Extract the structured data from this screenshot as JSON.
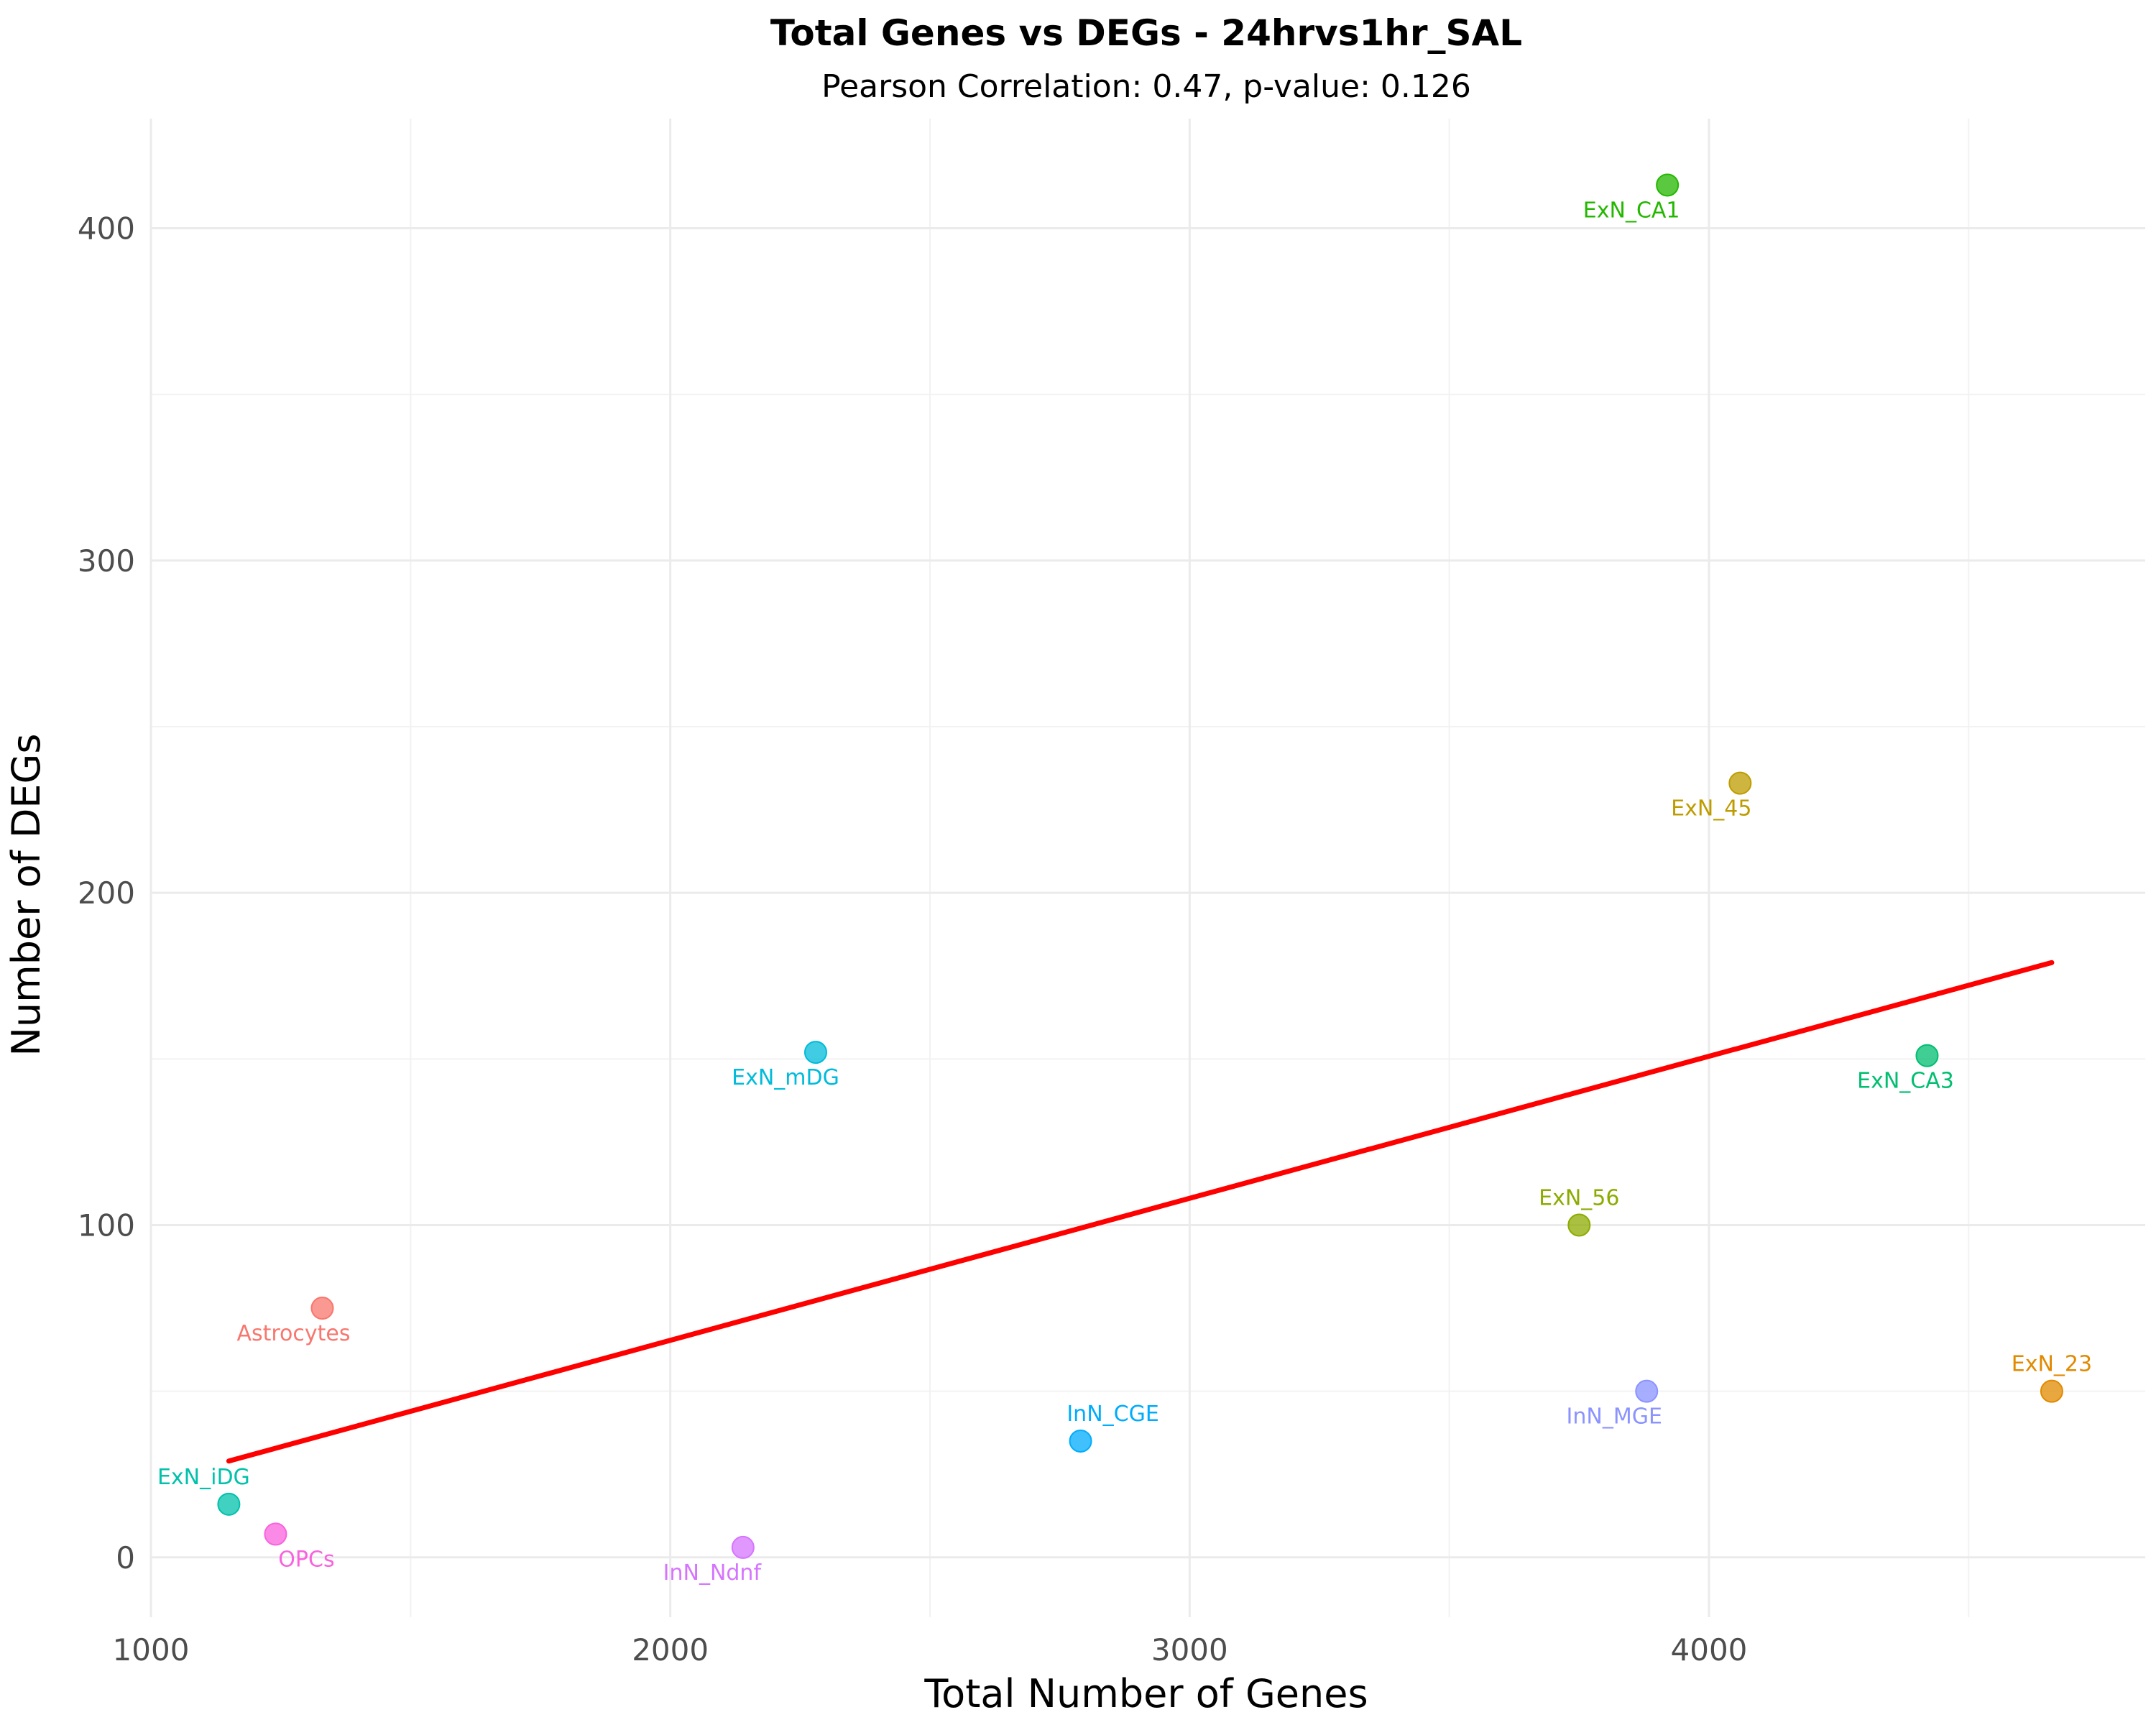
{
  "chart_data": {
    "type": "scatter",
    "title": "Total Genes vs DEGs - 24hrvs1hr_SAL",
    "subtitle": "Pearson Correlation: 0.47, p-value: 0.126",
    "xlabel": "Total Number of Genes",
    "ylabel": "Number of DEGs",
    "xlim": [
      1000,
      4840
    ],
    "ylim": [
      -18,
      433
    ],
    "x_ticks": [
      1000,
      2000,
      3000,
      4000
    ],
    "y_ticks": [
      0,
      100,
      200,
      300,
      400
    ],
    "grid": true,
    "points": [
      {
        "label": "Astrocytes",
        "x": 1330,
        "y": 75,
        "color": "#F8766D"
      },
      {
        "label": "ExN_23",
        "x": 4660,
        "y": 50,
        "color": "#E18A00"
      },
      {
        "label": "ExN_45",
        "x": 4060,
        "y": 233,
        "color": "#BE9C00"
      },
      {
        "label": "ExN_56",
        "x": 3750,
        "y": 100,
        "color": "#8CAB00"
      },
      {
        "label": "ExN_CA1",
        "x": 3920,
        "y": 413,
        "color": "#24B700"
      },
      {
        "label": "ExN_CA3",
        "x": 4420,
        "y": 151,
        "color": "#00BE70"
      },
      {
        "label": "ExN_iDG",
        "x": 1150,
        "y": 16,
        "color": "#00C1AB"
      },
      {
        "label": "ExN_mDG",
        "x": 2280,
        "y": 152,
        "color": "#00BBDA"
      },
      {
        "label": "InN_CGE",
        "x": 2790,
        "y": 35,
        "color": "#00ACFC"
      },
      {
        "label": "InN_MGE",
        "x": 3880,
        "y": 50,
        "color": "#8B93FF"
      },
      {
        "label": "InN_Ndnf",
        "x": 2140,
        "y": 3,
        "color": "#D575FE"
      },
      {
        "label": "OPCs",
        "x": 1240,
        "y": 7,
        "color": "#F962DD"
      }
    ],
    "trend_line": {
      "x": [
        1150,
        4660
      ],
      "y": [
        29,
        179
      ],
      "color": "#FF0000"
    }
  }
}
